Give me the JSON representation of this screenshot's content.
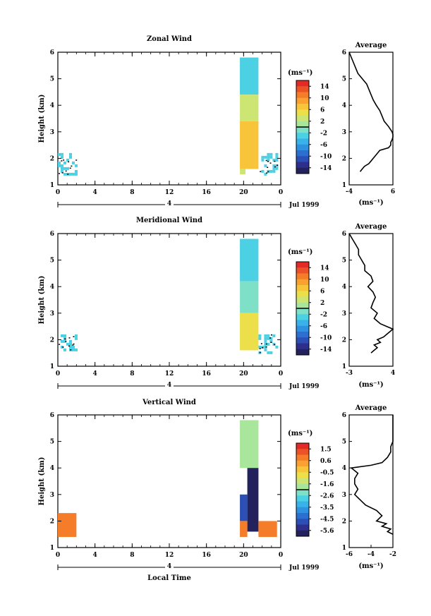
{
  "figure": {
    "xlabel_bottom": "Local Time",
    "date_label": "Jul 1999",
    "day_label": "4"
  },
  "chart_data": [
    {
      "type": "heatmap",
      "title": "Zonal Wind",
      "ylabel": "Height (km)",
      "xlabel": "",
      "xlim": [
        0,
        24
      ],
      "ylim": [
        1,
        6
      ],
      "x_ticks": [
        "0",
        "4",
        "8",
        "12",
        "16",
        "20",
        "0"
      ],
      "y_ticks": [
        "1",
        "2",
        "3",
        "4",
        "5",
        "6"
      ],
      "colorbar": {
        "unit": "(ms⁻¹)",
        "ticks": [
          "14",
          "10",
          "6",
          "2",
          "-2",
          "-6",
          "-10",
          "-14"
        ],
        "range": [
          -16,
          16
        ],
        "levels": 16
      },
      "regions": [
        {
          "x": [
            0.0,
            2.0
          ],
          "y": [
            1.4,
            2.2
          ],
          "value": -3,
          "pattern": "patchy"
        },
        {
          "x": [
            19.6,
            21.6
          ],
          "y": [
            4.4,
            5.8
          ],
          "value": -4
        },
        {
          "x": [
            19.6,
            21.6
          ],
          "y": [
            3.4,
            4.4
          ],
          "value": 2
        },
        {
          "x": [
            19.6,
            21.6
          ],
          "y": [
            1.6,
            3.4
          ],
          "value": 7
        },
        {
          "x": [
            19.6,
            20.2
          ],
          "y": [
            1.4,
            1.6
          ],
          "value": 3
        },
        {
          "x": [
            21.6,
            23.6
          ],
          "y": [
            1.4,
            2.2
          ],
          "value": -3,
          "pattern": "patchy"
        }
      ],
      "average": {
        "title": "Average",
        "xlabel": "(ms⁻¹)",
        "xlim": [
          -4,
          6
        ],
        "x_ticks": [
          "-4",
          "6"
        ],
        "heights": [
          1.5,
          1.6,
          1.7,
          1.8,
          1.9,
          2.0,
          2.1,
          2.2,
          2.3,
          2.4,
          2.5,
          2.6,
          2.7,
          2.8,
          2.9,
          3.0,
          3.2,
          3.4,
          3.6,
          3.8,
          4.0,
          4.2,
          4.4,
          4.6,
          4.8,
          5.0,
          5.2,
          5.4,
          5.6,
          5.8,
          6.0
        ],
        "values": [
          -1.5,
          -1.0,
          -0.5,
          0.5,
          1.0,
          1.5,
          2.0,
          2.5,
          3.0,
          5.0,
          5.5,
          5.5,
          5.8,
          6.0,
          6.0,
          5.8,
          5.0,
          4.0,
          3.5,
          3.0,
          2.2,
          1.5,
          1.0,
          0.5,
          0.0,
          -1.0,
          -2.0,
          -2.5,
          -3.0,
          -3.5,
          -4.0
        ]
      }
    },
    {
      "type": "heatmap",
      "title": "Meridional Wind",
      "ylabel": "Height (km)",
      "xlabel": "",
      "xlim": [
        0,
        24
      ],
      "ylim": [
        1,
        6
      ],
      "x_ticks": [
        "0",
        "4",
        "8",
        "12",
        "16",
        "20",
        "0"
      ],
      "y_ticks": [
        "1",
        "2",
        "3",
        "4",
        "5",
        "6"
      ],
      "colorbar": {
        "unit": "(ms⁻¹)",
        "ticks": [
          "14",
          "10",
          "6",
          "2",
          "-2",
          "-6",
          "-10",
          "-14"
        ],
        "range": [
          -16,
          16
        ],
        "levels": 16
      },
      "regions": [
        {
          "x": [
            0.0,
            2.0
          ],
          "y": [
            1.5,
            2.2
          ],
          "value": -3,
          "pattern": "patchy"
        },
        {
          "x": [
            19.6,
            21.6
          ],
          "y": [
            4.2,
            5.8
          ],
          "value": -4
        },
        {
          "x": [
            19.6,
            21.6
          ],
          "y": [
            3.0,
            4.2
          ],
          "value": -2
        },
        {
          "x": [
            19.6,
            21.6
          ],
          "y": [
            1.6,
            3.0
          ],
          "value": 4
        },
        {
          "x": [
            21.6,
            23.6
          ],
          "y": [
            1.5,
            2.2
          ],
          "value": -3,
          "pattern": "patchy"
        }
      ],
      "average": {
        "title": "Average",
        "xlabel": "(ms⁻¹)",
        "xlim": [
          -3,
          4
        ],
        "x_ticks": [
          "-3",
          "4"
        ],
        "heights": [
          1.5,
          1.6,
          1.7,
          1.8,
          1.9,
          2.0,
          2.1,
          2.2,
          2.3,
          2.4,
          2.5,
          2.6,
          2.7,
          2.8,
          3.0,
          3.2,
          3.4,
          3.6,
          3.8,
          4.0,
          4.2,
          4.4,
          4.6,
          4.8,
          5.0,
          5.2,
          5.4,
          5.6,
          5.8,
          6.0
        ],
        "values": [
          0.5,
          1.0,
          1.5,
          1.0,
          2.0,
          1.5,
          2.5,
          3.0,
          3.5,
          4.0,
          3.0,
          2.0,
          1.5,
          1.0,
          1.5,
          0.5,
          0.8,
          1.2,
          0.8,
          0.0,
          0.8,
          0.5,
          -0.5,
          -0.5,
          -1.0,
          -1.5,
          -1.5,
          -2.0,
          -2.5,
          -3.0
        ]
      }
    },
    {
      "type": "heatmap",
      "title": "Vertical Wind",
      "ylabel": "Height (km)",
      "xlabel": "Local Time",
      "xlim": [
        0,
        24
      ],
      "ylim": [
        1,
        6
      ],
      "x_ticks": [
        "0",
        "4",
        "8",
        "12",
        "16",
        "20",
        "0"
      ],
      "y_ticks": [
        "1",
        "2",
        "3",
        "4",
        "5",
        "6"
      ],
      "colorbar": {
        "unit": "(ms⁻¹)",
        "ticks": [
          "1.5",
          "0.6",
          "-0.5",
          "-1.6",
          "-2.6",
          "-3.5",
          "-4.5",
          "-5.6"
        ],
        "range": [
          -6,
          2
        ],
        "levels": 16
      },
      "regions": [
        {
          "x": [
            0.0,
            2.0
          ],
          "y": [
            1.4,
            2.3
          ],
          "value": 0.6
        },
        {
          "x": [
            19.6,
            21.6
          ],
          "y": [
            4.0,
            5.8
          ],
          "value": -1.6
        },
        {
          "x": [
            20.4,
            21.6
          ],
          "y": [
            1.6,
            4.0
          ],
          "value": -5.6
        },
        {
          "x": [
            19.6,
            20.4
          ],
          "y": [
            2.0,
            3.0
          ],
          "value": -4.8
        },
        {
          "x": [
            19.6,
            20.4
          ],
          "y": [
            1.4,
            2.0
          ],
          "value": 0.6
        },
        {
          "x": [
            21.6,
            23.6
          ],
          "y": [
            1.4,
            2.0
          ],
          "value": 0.6
        }
      ],
      "average": {
        "title": "Average",
        "xlabel": "(ms⁻¹)",
        "xlim": [
          -6,
          -2
        ],
        "x_ticks": [
          "-6",
          "-4",
          "-2"
        ],
        "heights": [
          1.5,
          1.6,
          1.7,
          1.8,
          1.9,
          2.0,
          2.2,
          2.4,
          2.6,
          2.8,
          3.0,
          3.2,
          3.4,
          3.6,
          3.8,
          4.0,
          4.1,
          4.2,
          4.4,
          4.6,
          4.8,
          5.0,
          5.2,
          5.4,
          5.6,
          5.8,
          6.0
        ],
        "values": [
          -2.0,
          -2.5,
          -2.2,
          -3.0,
          -2.6,
          -3.5,
          -3.0,
          -3.5,
          -4.5,
          -5.0,
          -5.5,
          -5.2,
          -5.5,
          -5.5,
          -5.2,
          -5.8,
          -4.0,
          -3.0,
          -2.5,
          -2.2,
          -2.2,
          -2.0,
          -2.0,
          -2.0,
          -2.0,
          -2.0,
          -2.0
        ]
      }
    }
  ]
}
